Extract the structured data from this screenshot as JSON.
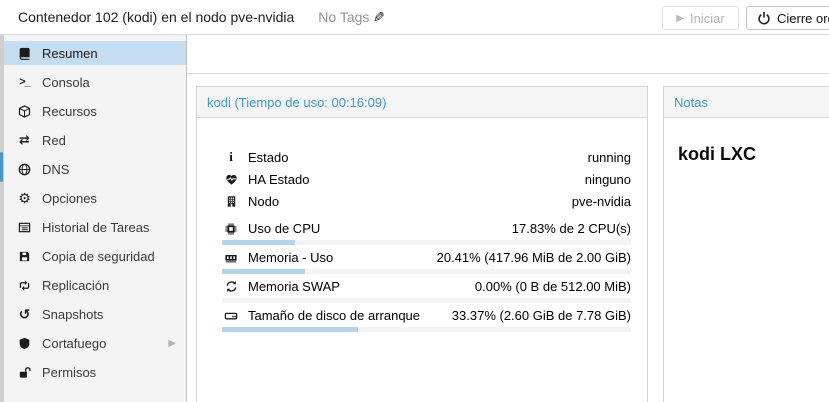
{
  "header": {
    "title": "Contenedor 102 (kodi) en el nodo pve-nvidia",
    "tags_label": "No Tags",
    "buttons": {
      "start": "Iniciar",
      "shutdown": "Cierre ordenado"
    }
  },
  "sidebar": {
    "items": [
      {
        "key": "resumen",
        "label": "Resumen",
        "icon": "book-icon",
        "selected": true
      },
      {
        "key": "consola",
        "label": "Consola",
        "icon": "terminal-icon"
      },
      {
        "key": "recursos",
        "label": "Recursos",
        "icon": "cube-icon"
      },
      {
        "key": "red",
        "label": "Red",
        "icon": "network-icon"
      },
      {
        "key": "dns",
        "label": "DNS",
        "icon": "globe-icon"
      },
      {
        "key": "opciones",
        "label": "Opciones",
        "icon": "gear-icon"
      },
      {
        "key": "historial-de-tareas",
        "label": "Historial de Tareas",
        "icon": "task-list-icon"
      },
      {
        "key": "copia-de-seguridad",
        "label": "Copia de seguridad",
        "icon": "backup-floppy-icon"
      },
      {
        "key": "replicacion",
        "label": "Replicación",
        "icon": "replication-icon"
      },
      {
        "key": "snapshots",
        "label": "Snapshots",
        "icon": "history-icon"
      },
      {
        "key": "cortafuego",
        "label": "Cortafuego",
        "icon": "shield-icon",
        "submenu": true
      },
      {
        "key": "permisos",
        "label": "Permisos",
        "icon": "unlock-icon"
      }
    ]
  },
  "status_panel": {
    "title": "kodi (Tiempo de uso: 00:16:09)",
    "rows": [
      {
        "icon": "info-icon",
        "label": "Estado",
        "value": "running"
      },
      {
        "icon": "heartbeat-icon",
        "label": "HA Estado",
        "value": "ninguno"
      },
      {
        "icon": "building-icon",
        "label": "Nodo",
        "value": "pve-nvidia"
      }
    ],
    "meters": [
      {
        "icon": "cpu-icon",
        "label": "Uso de CPU",
        "value": "17.83% de 2 CPU(s)",
        "percent": 17.83
      },
      {
        "icon": "memory-icon",
        "label": "Memoria - Uso",
        "value": "20.41% (417.96 MiB de 2.00 GiB)",
        "percent": 20.41
      },
      {
        "icon": "swap-icon",
        "label": "Memoria SWAP",
        "value": "0.00% (0 B de 512.00 MiB)",
        "percent": 0
      },
      {
        "icon": "disk-icon",
        "label": "Tamaño de disco de arranque",
        "value": "33.37% (2.60 GiB de 7.78 GiB)",
        "percent": 33.37
      }
    ]
  },
  "notes_panel": {
    "title": "Notas",
    "content": "kodi LXC"
  },
  "colors": {
    "accent_blue": "#3d9ad4",
    "selected_item_bg": "#c4ddf0",
    "progress_fill": "#b3d4ea",
    "scroll_thumb_blue": "#4d94c9",
    "disabled_text": "#b5b5b5"
  }
}
